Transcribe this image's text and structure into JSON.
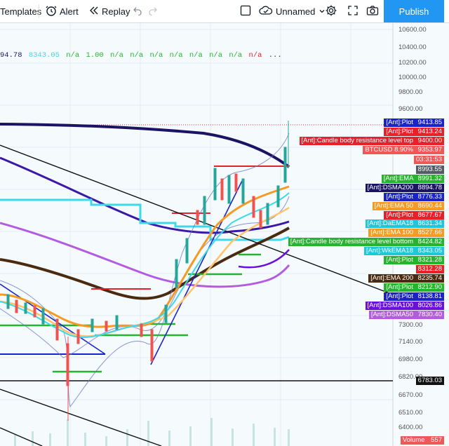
{
  "toolbar": {
    "templates_label": "Templates",
    "alert_label": "Alert",
    "replay_label": "Replay",
    "layout_name": "Unnamed",
    "publish_label": "Publish"
  },
  "legend": {
    "values": [
      "94.78",
      "8343.05",
      "n/a",
      "1.00",
      "n/a",
      "n/a",
      "n/a",
      "n/a",
      "n/a",
      "n/a",
      "n/a",
      "n/a",
      "..."
    ]
  },
  "axis": {
    "ticks": [
      "10600.00",
      "10400.00",
      "10200.00",
      "10000.00",
      "9800.00",
      "9600.00",
      "7300.00",
      "7140.00",
      "6980.00",
      "6820.00",
      "6670.00",
      "6510.00",
      "6400.00"
    ]
  },
  "price_tags": [
    {
      "label": "[Ant]:Plot",
      "value": "9413.85",
      "bg": "#1a23c9"
    },
    {
      "label": "[Ant]:Plot",
      "value": "9413.24",
      "bg": "#e8202a"
    },
    {
      "label": "[Ant]:Candle body resistance level top",
      "value": "9400.00",
      "bg": "#e8202a"
    },
    {
      "label": "BTCUSD 8.90%",
      "value": "9353.97",
      "bg": "#ef5858"
    },
    {
      "label": "",
      "value": "03:31:53",
      "bg": "#ef5858"
    },
    {
      "label": "",
      "value": "8993.55",
      "bg": "#555b66"
    },
    {
      "label": "[Ant]:EMA",
      "value": "8991.32",
      "bg": "#24b52c"
    },
    {
      "label": "[Ant]:DSMA200",
      "value": "8894.78",
      "bg": "#1b1464"
    },
    {
      "label": "[Ant]:Plot",
      "value": "8776.33",
      "bg": "#1a23c9"
    },
    {
      "label": "[Ant]:EMA 50",
      "value": "8690.44",
      "bg": "#f59a23"
    },
    {
      "label": "[Ant]:Plot",
      "value": "8677.67",
      "bg": "#e8202a"
    },
    {
      "label": "[Ant]:DaEMA18",
      "value": "8631.34",
      "bg": "#1ec7d9"
    },
    {
      "label": "[Ant]:EMA 100",
      "value": "8527.66",
      "bg": "#f59a23"
    },
    {
      "label": "[Ant]:Candle body resistance level bottom",
      "value": "8424.82",
      "bg": "#24b52c"
    },
    {
      "label": "[Ant]:WkEMA18",
      "value": "8343.05",
      "bg": "#1ec7d9"
    },
    {
      "label": "[Ant]:Plot",
      "value": "8321.28",
      "bg": "#24b52c"
    },
    {
      "label": "",
      "value": "8312.28",
      "bg": "#e8202a"
    },
    {
      "label": "[Ant]:EMA 200",
      "value": "8235.74",
      "bg": "#4a2b10"
    },
    {
      "label": "[Ant]:Plot",
      "value": "8212.90",
      "bg": "#24b52c"
    },
    {
      "label": "[Ant]:Plot",
      "value": "8138.81",
      "bg": "#1a23c9"
    },
    {
      "label": "[Ant]:DSMA100",
      "value": "8026.86",
      "bg": "#6a10d9"
    },
    {
      "label": "[Ant]:DSMA50",
      "value": "7830.40",
      "bg": "#b45ce0"
    },
    {
      "label": "",
      "value": "6783.03",
      "bg": "#111111"
    },
    {
      "label": "Volume",
      "value": "557",
      "bg": "#ef5858"
    }
  ],
  "colors": {
    "background": "#f5fbfd",
    "publish": "#2196f3",
    "up": "#26a69a",
    "down": "#ef5350"
  }
}
